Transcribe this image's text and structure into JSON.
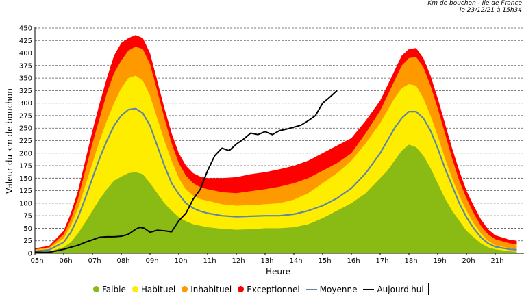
{
  "header": {
    "line1": "Km de bouchon - Ile de France",
    "line2": "le 23/12/21 à 15h34"
  },
  "chart_data": {
    "type": "area",
    "title": "",
    "xlabel": "Heure",
    "ylabel": "Valeur du  km de bouchon",
    "ylim": [
      0,
      450
    ],
    "yticks": [
      0,
      25,
      50,
      75,
      100,
      125,
      150,
      175,
      200,
      225,
      250,
      275,
      300,
      325,
      350,
      375,
      400,
      425,
      450
    ],
    "xlim": [
      5,
      22
    ],
    "xticks": [
      {
        "value": 5,
        "label": "05h"
      },
      {
        "value": 6,
        "label": "06h"
      },
      {
        "value": 7,
        "label": "07h"
      },
      {
        "value": 8,
        "label": "08h"
      },
      {
        "value": 9,
        "label": "09h"
      },
      {
        "value": 10,
        "label": "10h"
      },
      {
        "value": 11,
        "label": "11h"
      },
      {
        "value": 12,
        "label": "12h"
      },
      {
        "value": 13,
        "label": "13h"
      },
      {
        "value": 14,
        "label": "14h"
      },
      {
        "value": 15,
        "label": "15h"
      },
      {
        "value": 16,
        "label": "16h"
      },
      {
        "value": 17,
        "label": "17h"
      },
      {
        "value": 18,
        "label": "18h"
      },
      {
        "value": 19,
        "label": "19h"
      },
      {
        "value": 20,
        "label": "20h"
      },
      {
        "value": 21,
        "label": "21h"
      }
    ],
    "grid": true,
    "legend_position": "bottom",
    "x": [
      5.0,
      5.5,
      6.0,
      6.25,
      6.5,
      6.75,
      7.0,
      7.25,
      7.5,
      7.75,
      8.0,
      8.25,
      8.5,
      8.75,
      9.0,
      9.25,
      9.5,
      9.75,
      10.0,
      10.25,
      10.5,
      10.75,
      11.0,
      11.5,
      12.0,
      12.5,
      13.0,
      13.5,
      14.0,
      14.5,
      15.0,
      15.5,
      16.0,
      16.5,
      17.0,
      17.25,
      17.5,
      17.75,
      18.0,
      18.25,
      18.5,
      18.75,
      19.0,
      19.25,
      19.5,
      19.75,
      20.0,
      20.25,
      20.5,
      20.75,
      21.0,
      21.5,
      21.75
    ],
    "bands": [
      {
        "name": "Faible",
        "color": "#8aba14",
        "values": [
          2,
          4,
          12,
          22,
          40,
          62,
          85,
          108,
          128,
          145,
          153,
          160,
          162,
          158,
          140,
          120,
          100,
          85,
          72,
          64,
          58,
          55,
          52,
          49,
          47,
          48,
          50,
          50,
          52,
          58,
          70,
          85,
          100,
          120,
          150,
          165,
          185,
          205,
          217,
          212,
          195,
          170,
          140,
          110,
          85,
          65,
          45,
          32,
          20,
          12,
          8,
          4,
          3
        ]
      },
      {
        "name": "Habituel",
        "color": "#ffed00",
        "values": [
          6,
          10,
          30,
          55,
          90,
          135,
          180,
          225,
          265,
          300,
          330,
          350,
          355,
          345,
          315,
          270,
          225,
          185,
          150,
          127,
          115,
          108,
          105,
          98,
          95,
          96,
          98,
          100,
          107,
          120,
          140,
          160,
          185,
          220,
          260,
          285,
          310,
          330,
          338,
          335,
          310,
          275,
          235,
          190,
          150,
          115,
          85,
          60,
          40,
          25,
          16,
          10,
          8
        ]
      },
      {
        "name": "Inhabituel",
        "color": "#ff9900",
        "values": [
          8,
          12,
          38,
          68,
          110,
          165,
          220,
          270,
          320,
          360,
          385,
          405,
          413,
          408,
          378,
          325,
          270,
          220,
          180,
          155,
          140,
          132,
          128,
          122,
          120,
          124,
          128,
          133,
          140,
          150,
          165,
          180,
          200,
          240,
          285,
          315,
          345,
          375,
          390,
          392,
          372,
          335,
          290,
          240,
          190,
          145,
          110,
          80,
          55,
          38,
          28,
          20,
          18
        ]
      },
      {
        "name": "Exceptionnel",
        "color": "#ff0000",
        "values": [
          10,
          15,
          45,
          80,
          125,
          185,
          245,
          300,
          350,
          395,
          420,
          430,
          436,
          430,
          400,
          345,
          290,
          240,
          200,
          175,
          160,
          153,
          150,
          150,
          152,
          158,
          162,
          168,
          175,
          185,
          200,
          215,
          230,
          265,
          305,
          335,
          365,
          395,
          408,
          410,
          390,
          355,
          310,
          260,
          210,
          165,
          125,
          95,
          68,
          48,
          36,
          27,
          25
        ]
      }
    ],
    "series": [
      {
        "name": "Moyenne",
        "color": "#5f87a5",
        "x": [
          5.0,
          5.5,
          6.0,
          6.25,
          6.5,
          6.75,
          7.0,
          7.25,
          7.5,
          7.75,
          8.0,
          8.25,
          8.5,
          8.75,
          9.0,
          9.25,
          9.5,
          9.75,
          10.0,
          10.25,
          10.5,
          10.75,
          11.0,
          11.5,
          12.0,
          12.5,
          13.0,
          13.5,
          14.0,
          14.5,
          15.0,
          15.5,
          16.0,
          16.5,
          17.0,
          17.25,
          17.5,
          17.75,
          18.0,
          18.25,
          18.5,
          18.75,
          19.0,
          19.25,
          19.5,
          19.75,
          20.0,
          20.25,
          20.5,
          20.75,
          21.0,
          21.5,
          21.75
        ],
        "values": [
          4,
          7,
          22,
          42,
          72,
          110,
          150,
          190,
          225,
          255,
          275,
          287,
          289,
          280,
          255,
          215,
          175,
          140,
          118,
          100,
          90,
          84,
          80,
          75,
          73,
          74,
          75,
          75,
          78,
          85,
          95,
          110,
          130,
          160,
          200,
          225,
          250,
          270,
          283,
          283,
          270,
          245,
          210,
          170,
          135,
          100,
          72,
          50,
          32,
          20,
          13,
          8,
          7
        ]
      },
      {
        "name": "Aujourd'hui",
        "color": "#000000",
        "x": [
          5.0,
          5.5,
          6.0,
          6.25,
          6.5,
          6.75,
          7.0,
          7.25,
          7.5,
          7.75,
          8.0,
          8.25,
          8.5,
          8.65,
          8.8,
          9.0,
          9.25,
          9.5,
          9.75,
          10.0,
          10.25,
          10.5,
          10.75,
          11.0,
          11.25,
          11.5,
          11.75,
          12.0,
          12.25,
          12.5,
          12.75,
          13.0,
          13.25,
          13.5,
          13.75,
          14.0,
          14.25,
          14.5,
          14.75,
          15.0,
          15.25,
          15.5
        ],
        "values": [
          2,
          2,
          8,
          12,
          16,
          22,
          27,
          32,
          33,
          33,
          34,
          38,
          48,
          52,
          50,
          42,
          46,
          45,
          43,
          65,
          80,
          108,
          128,
          165,
          195,
          210,
          205,
          218,
          228,
          240,
          237,
          243,
          237,
          245,
          248,
          252,
          256,
          265,
          275,
          300,
          312,
          325
        ]
      }
    ],
    "legend": [
      "Faible",
      "Habituel",
      "Inhabituel",
      "Exceptionnel",
      "Moyenne",
      "Aujourd'hui"
    ]
  }
}
